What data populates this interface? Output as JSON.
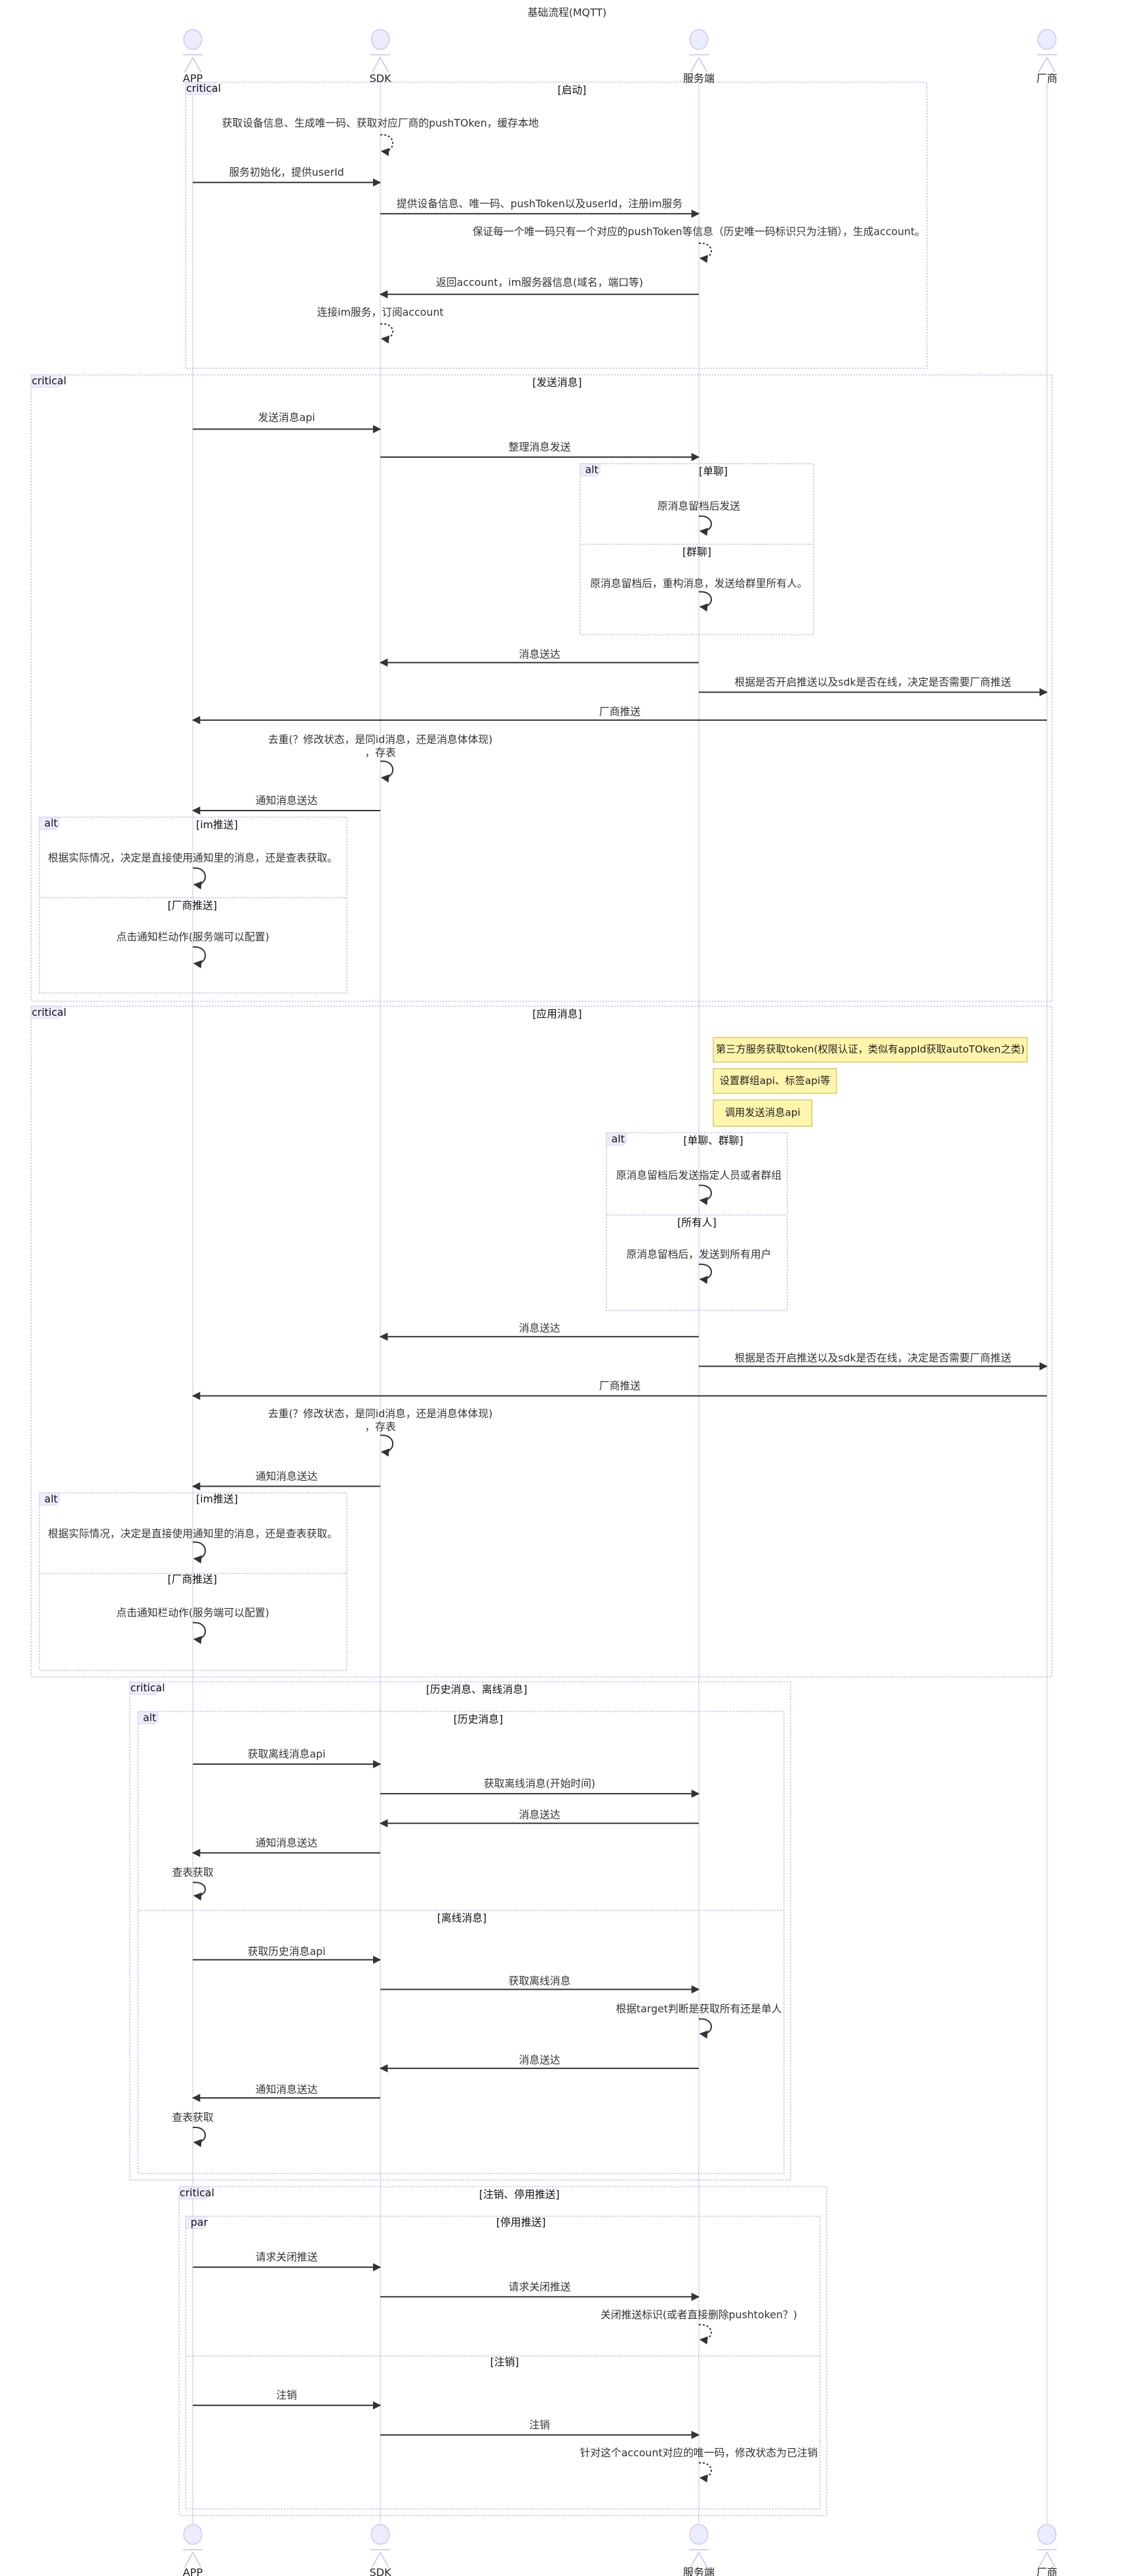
{
  "diagram": {
    "title": "基础流程(MQTT)",
    "participants": [
      "APP",
      "SDK",
      "服务端",
      "厂商"
    ],
    "colors": {
      "lifeline": "#d3cdf3",
      "frame_border": "#cdc7ef",
      "tag_fill": "#ececff",
      "arrow": "#333333",
      "note_fill": "#fff5ad",
      "note_border": "#c7c55a"
    },
    "frames": [
      {
        "kind": "critical",
        "conditions": [
          "[启动]"
        ]
      },
      {
        "kind": "critical",
        "conditions": [
          "[发送消息]"
        ]
      },
      {
        "kind": "alt",
        "conditions": [
          "[单聊]",
          "[群聊]"
        ]
      },
      {
        "kind": "alt",
        "conditions": [
          "[im推送]",
          "[厂商推送]"
        ]
      },
      {
        "kind": "critical",
        "conditions": [
          "[应用消息]"
        ]
      },
      {
        "kind": "alt",
        "conditions": [
          "[单聊、群聊]",
          "[所有人]"
        ]
      },
      {
        "kind": "alt",
        "conditions": [
          "[im推送]",
          "[厂商推送]"
        ]
      },
      {
        "kind": "critical",
        "conditions": [
          "[历史消息、离线消息]"
        ]
      },
      {
        "kind": "alt",
        "conditions": [
          "[历史消息]",
          "[离线消息]"
        ]
      },
      {
        "kind": "critical",
        "conditions": [
          "[注销、停用推送]"
        ]
      },
      {
        "kind": "par",
        "conditions": [
          "[停用推送]",
          "[注销]"
        ]
      }
    ],
    "notes": [
      {
        "over": "服务端",
        "text": "第三方服务获取token(权限认证，类似有appId获取autoTOken之类)"
      },
      {
        "over": "服务端",
        "text": "设置群组api、标签api等"
      },
      {
        "over": "服务端",
        "text": "调用发送消息api"
      }
    ],
    "messages": [
      {
        "from": "SDK",
        "to": "SDK",
        "line": "dotted",
        "text": "获取设备信息、生成唯一码、获取对应厂商的pushTOken，缓存本地"
      },
      {
        "from": "APP",
        "to": "SDK",
        "line": "solid",
        "text": "服务初始化，提供userId"
      },
      {
        "from": "SDK",
        "to": "服务端",
        "line": "solid",
        "text": "提供设备信息、唯一码、pushToken以及userId，注册im服务"
      },
      {
        "from": "服务端",
        "to": "服务端",
        "line": "dotted",
        "text": "保证每一个唯一码只有一个对应的pushToken等信息（历史唯一码标识只为注销），生成account。"
      },
      {
        "from": "服务端",
        "to": "SDK",
        "line": "solid",
        "text": "返回account，im服务器信息(域名，端口等)"
      },
      {
        "from": "SDK",
        "to": "SDK",
        "line": "dotted",
        "text": "连接im服务，订阅account"
      },
      {
        "from": "APP",
        "to": "SDK",
        "line": "solid",
        "text": "发送消息api"
      },
      {
        "from": "SDK",
        "to": "服务端",
        "line": "solid",
        "text": "整理消息发送"
      },
      {
        "from": "服务端",
        "to": "服务端",
        "line": "solid",
        "text": "原消息留档后发送"
      },
      {
        "from": "服务端",
        "to": "服务端",
        "line": "solid",
        "text": "原消息留档后，重构消息，发送给群里所有人。"
      },
      {
        "from": "服务端",
        "to": "SDK",
        "line": "solid",
        "text": "消息送达"
      },
      {
        "from": "服务端",
        "to": "厂商",
        "line": "solid",
        "text": "根据是否开启推送以及sdk是否在线，决定是否需要厂商推送"
      },
      {
        "from": "厂商",
        "to": "APP",
        "line": "solid",
        "text": "厂商推送"
      },
      {
        "from": "SDK",
        "to": "SDK",
        "line": "solid",
        "text": "去重(？修改状态，是同id消息，还是消息体体现)\n，存表"
      },
      {
        "from": "SDK",
        "to": "APP",
        "line": "solid",
        "text": "通知消息送达"
      },
      {
        "from": "APP",
        "to": "APP",
        "line": "solid",
        "text": "根据实际情况，决定是直接使用通知里的消息，还是查表获取。"
      },
      {
        "from": "APP",
        "to": "APP",
        "line": "solid",
        "text": "点击通知栏动作(服务端可以配置)"
      },
      {
        "from": "服务端",
        "to": "服务端",
        "line": "solid",
        "text": "原消息留档后发送指定人员或者群组"
      },
      {
        "from": "服务端",
        "to": "服务端",
        "line": "solid",
        "text": "原消息留档后，发送到所有用户"
      },
      {
        "from": "服务端",
        "to": "SDK",
        "line": "solid",
        "text": "消息送达"
      },
      {
        "from": "服务端",
        "to": "厂商",
        "line": "solid",
        "text": "根据是否开启推送以及sdk是否在线，决定是否需要厂商推送"
      },
      {
        "from": "厂商",
        "to": "APP",
        "line": "solid",
        "text": "厂商推送"
      },
      {
        "from": "SDK",
        "to": "SDK",
        "line": "solid",
        "text": "去重(？修改状态，是同id消息，还是消息体体现)\n，存表"
      },
      {
        "from": "SDK",
        "to": "APP",
        "line": "solid",
        "text": "通知消息送达"
      },
      {
        "from": "APP",
        "to": "APP",
        "line": "solid",
        "text": "根据实际情况，决定是直接使用通知里的消息，还是查表获取。"
      },
      {
        "from": "APP",
        "to": "APP",
        "line": "solid",
        "text": "点击通知栏动作(服务端可以配置)"
      },
      {
        "from": "APP",
        "to": "SDK",
        "line": "solid",
        "text": "获取离线消息api"
      },
      {
        "from": "SDK",
        "to": "服务端",
        "line": "solid",
        "text": "获取离线消息(开始时间)"
      },
      {
        "from": "服务端",
        "to": "SDK",
        "line": "solid",
        "text": "消息送达"
      },
      {
        "from": "SDK",
        "to": "APP",
        "line": "solid",
        "text": "通知消息送达"
      },
      {
        "from": "APP",
        "to": "APP",
        "line": "solid",
        "text": "查表获取"
      },
      {
        "from": "APP",
        "to": "SDK",
        "line": "solid",
        "text": "获取历史消息api"
      },
      {
        "from": "SDK",
        "to": "服务端",
        "line": "solid",
        "text": "获取离线消息"
      },
      {
        "from": "服务端",
        "to": "服务端",
        "line": "solid",
        "text": "根据target判断是获取所有还是单人"
      },
      {
        "from": "服务端",
        "to": "SDK",
        "line": "solid",
        "text": "消息送达"
      },
      {
        "from": "SDK",
        "to": "APP",
        "line": "solid",
        "text": "通知消息送达"
      },
      {
        "from": "APP",
        "to": "APP",
        "line": "solid",
        "text": "查表获取"
      },
      {
        "from": "APP",
        "to": "SDK",
        "line": "solid",
        "text": "请求关闭推送"
      },
      {
        "from": "SDK",
        "to": "服务端",
        "line": "solid",
        "text": "请求关闭推送"
      },
      {
        "from": "服务端",
        "to": "服务端",
        "line": "dotted",
        "text": "关闭推送标识(或者直接删除pushtoken？)"
      },
      {
        "from": "APP",
        "to": "SDK",
        "line": "solid",
        "text": "注销"
      },
      {
        "from": "SDK",
        "to": "服务端",
        "line": "solid",
        "text": "注销"
      },
      {
        "from": "服务端",
        "to": "服务端",
        "line": "dotted",
        "text": "针对这个account对应的唯一码，修改状态为已注销"
      }
    ]
  }
}
